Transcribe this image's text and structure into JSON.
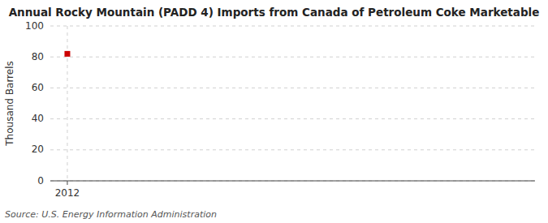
{
  "chart_data": {
    "type": "scatter",
    "title": "Annual Rocky Mountain (PADD 4) Imports from Canada of Petroleum Coke Marketable",
    "y_label": "Thousand Barrels",
    "source": "Source: U.S. Energy Information Administration",
    "x": [
      2012
    ],
    "values": [
      82
    ],
    "color": "#cc0000",
    "marker": "square",
    "xlim": [
      2011.6,
      2023.0
    ],
    "ylim": [
      0,
      100
    ],
    "xticks": [
      2012
    ],
    "yticks": [
      0,
      20,
      40,
      60,
      80,
      100
    ],
    "grid": true
  }
}
